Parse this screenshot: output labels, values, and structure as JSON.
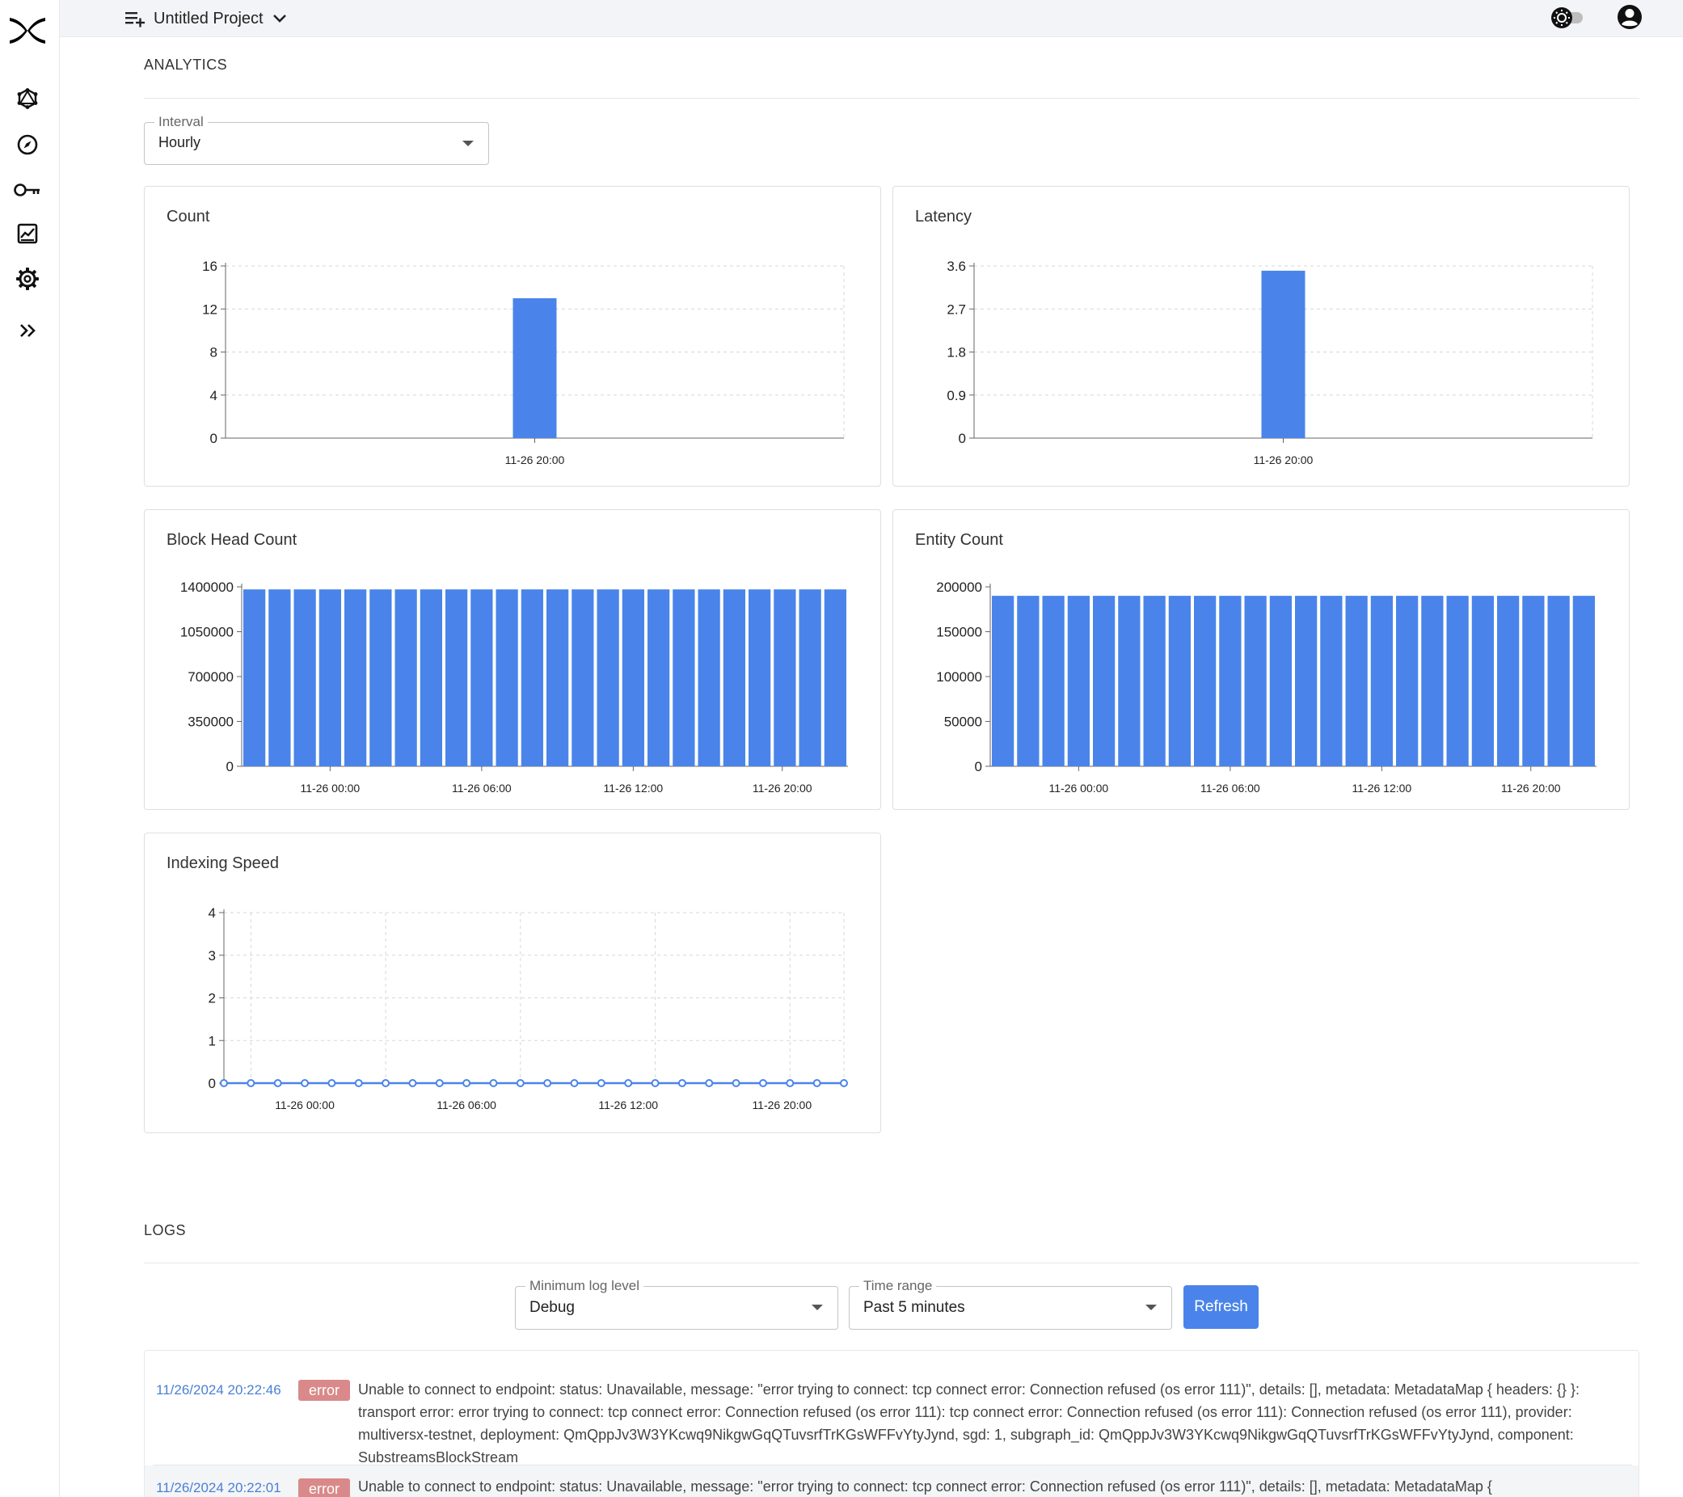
{
  "app": {
    "project_name": "Untitled Project",
    "brand_color": "#000000",
    "accent_color": "#4a84ea"
  },
  "sidebar": {
    "items": [
      {
        "icon": "graphql-icon"
      },
      {
        "icon": "compass-icon"
      },
      {
        "icon": "key-icon"
      },
      {
        "icon": "analytics-chart-icon"
      },
      {
        "icon": "gear-icon"
      },
      {
        "icon": "expand-chevrons-icon"
      }
    ]
  },
  "analytics": {
    "section_title": "ANALYTICS",
    "interval_label": "Interval",
    "interval_value": "Hourly"
  },
  "charts": {
    "count": {
      "title": "Count"
    },
    "latency": {
      "title": "Latency"
    },
    "block_head": {
      "title": "Block Head Count"
    },
    "entity": {
      "title": "Entity Count"
    },
    "speed": {
      "title": "Indexing Speed"
    }
  },
  "chart_data": [
    {
      "type": "bar",
      "title": "Count",
      "categories": [
        "11-26 20:00"
      ],
      "values": [
        13
      ],
      "yticks": [
        "0",
        "4",
        "8",
        "12",
        "16"
      ],
      "ylim": [
        0,
        16
      ],
      "grid": true
    },
    {
      "type": "bar",
      "title": "Latency",
      "categories": [
        "11-26 20:00"
      ],
      "values": [
        3.5
      ],
      "yticks": [
        "0",
        "0.9",
        "1.8",
        "2.7",
        "3.6"
      ],
      "ylim": [
        0,
        3.6
      ],
      "grid": true
    },
    {
      "type": "bar",
      "title": "Block Head Count",
      "xtick_labels": [
        "11-26 00:00",
        "11-26 06:00",
        "11-26 12:00",
        "11-26 20:00"
      ],
      "bar_count": 24,
      "values": [
        1380000,
        1380000,
        1380000,
        1380000,
        1380000,
        1380000,
        1380000,
        1380000,
        1380000,
        1380000,
        1380000,
        1380000,
        1380000,
        1380000,
        1380000,
        1380000,
        1380000,
        1380000,
        1380000,
        1380000,
        1380000,
        1380000,
        1380000,
        1380000
      ],
      "yticks": [
        "0",
        "350000",
        "700000",
        "1050000",
        "1400000"
      ],
      "ylim": [
        0,
        1400000
      ],
      "grid": false
    },
    {
      "type": "bar",
      "title": "Entity Count",
      "xtick_labels": [
        "11-26 00:00",
        "11-26 06:00",
        "11-26 12:00",
        "11-26 20:00"
      ],
      "bar_count": 24,
      "values": [
        190000,
        190000,
        190000,
        190000,
        190000,
        190000,
        190000,
        190000,
        190000,
        190000,
        190000,
        190000,
        190000,
        190000,
        190000,
        190000,
        190000,
        190000,
        190000,
        190000,
        190000,
        190000,
        190000,
        190000
      ],
      "yticks": [
        "0",
        "50000",
        "100000",
        "150000",
        "200000"
      ],
      "ylim": [
        0,
        200000
      ],
      "grid": false
    },
    {
      "type": "line",
      "title": "Indexing Speed",
      "xtick_labels": [
        "11-26 00:00",
        "11-26 06:00",
        "11-26 12:00",
        "11-26 20:00"
      ],
      "point_count": 24,
      "values": [
        0,
        0,
        0,
        0,
        0,
        0,
        0,
        0,
        0,
        0,
        0,
        0,
        0,
        0,
        0,
        0,
        0,
        0,
        0,
        0,
        0,
        0,
        0,
        0
      ],
      "yticks": [
        "0",
        "1",
        "2",
        "3",
        "4"
      ],
      "ylim": [
        0,
        4
      ],
      "grid": true
    }
  ],
  "logs": {
    "section_title": "LOGS",
    "min_level_label": "Minimum log level",
    "min_level_value": "Debug",
    "time_range_label": "Time range",
    "time_range_value": "Past 5 minutes",
    "refresh_label": "Refresh",
    "entries": [
      {
        "timestamp": "11/26/2024 20:22:46",
        "level": "error",
        "message": "Unable to connect to endpoint: status: Unavailable, message: \"error trying to connect: tcp connect error: Connection refused (os error 111)\", details: [], metadata: MetadataMap { headers: {} }: transport error: error trying to connect: tcp connect error: Connection refused (os error 111): tcp connect error: Connection refused (os error 111): Connection refused (os error 111), provider: multiversx-testnet, deployment: QmQppJv3W3YKcwq9NikgwGqQTuvsrfTrKGsWFFvYtyJynd, sgd: 1, subgraph_id: QmQppJv3W3YKcwq9NikgwGqQTuvsrfTrKGsWFFvYtyJynd, component: SubstreamsBlockStream"
      },
      {
        "timestamp": "11/26/2024 20:22:01",
        "level": "error",
        "message": "Unable to connect to endpoint: status: Unavailable, message: \"error trying to connect: tcp connect error: Connection refused (os error 111)\", details: [], metadata: MetadataMap {"
      }
    ]
  }
}
